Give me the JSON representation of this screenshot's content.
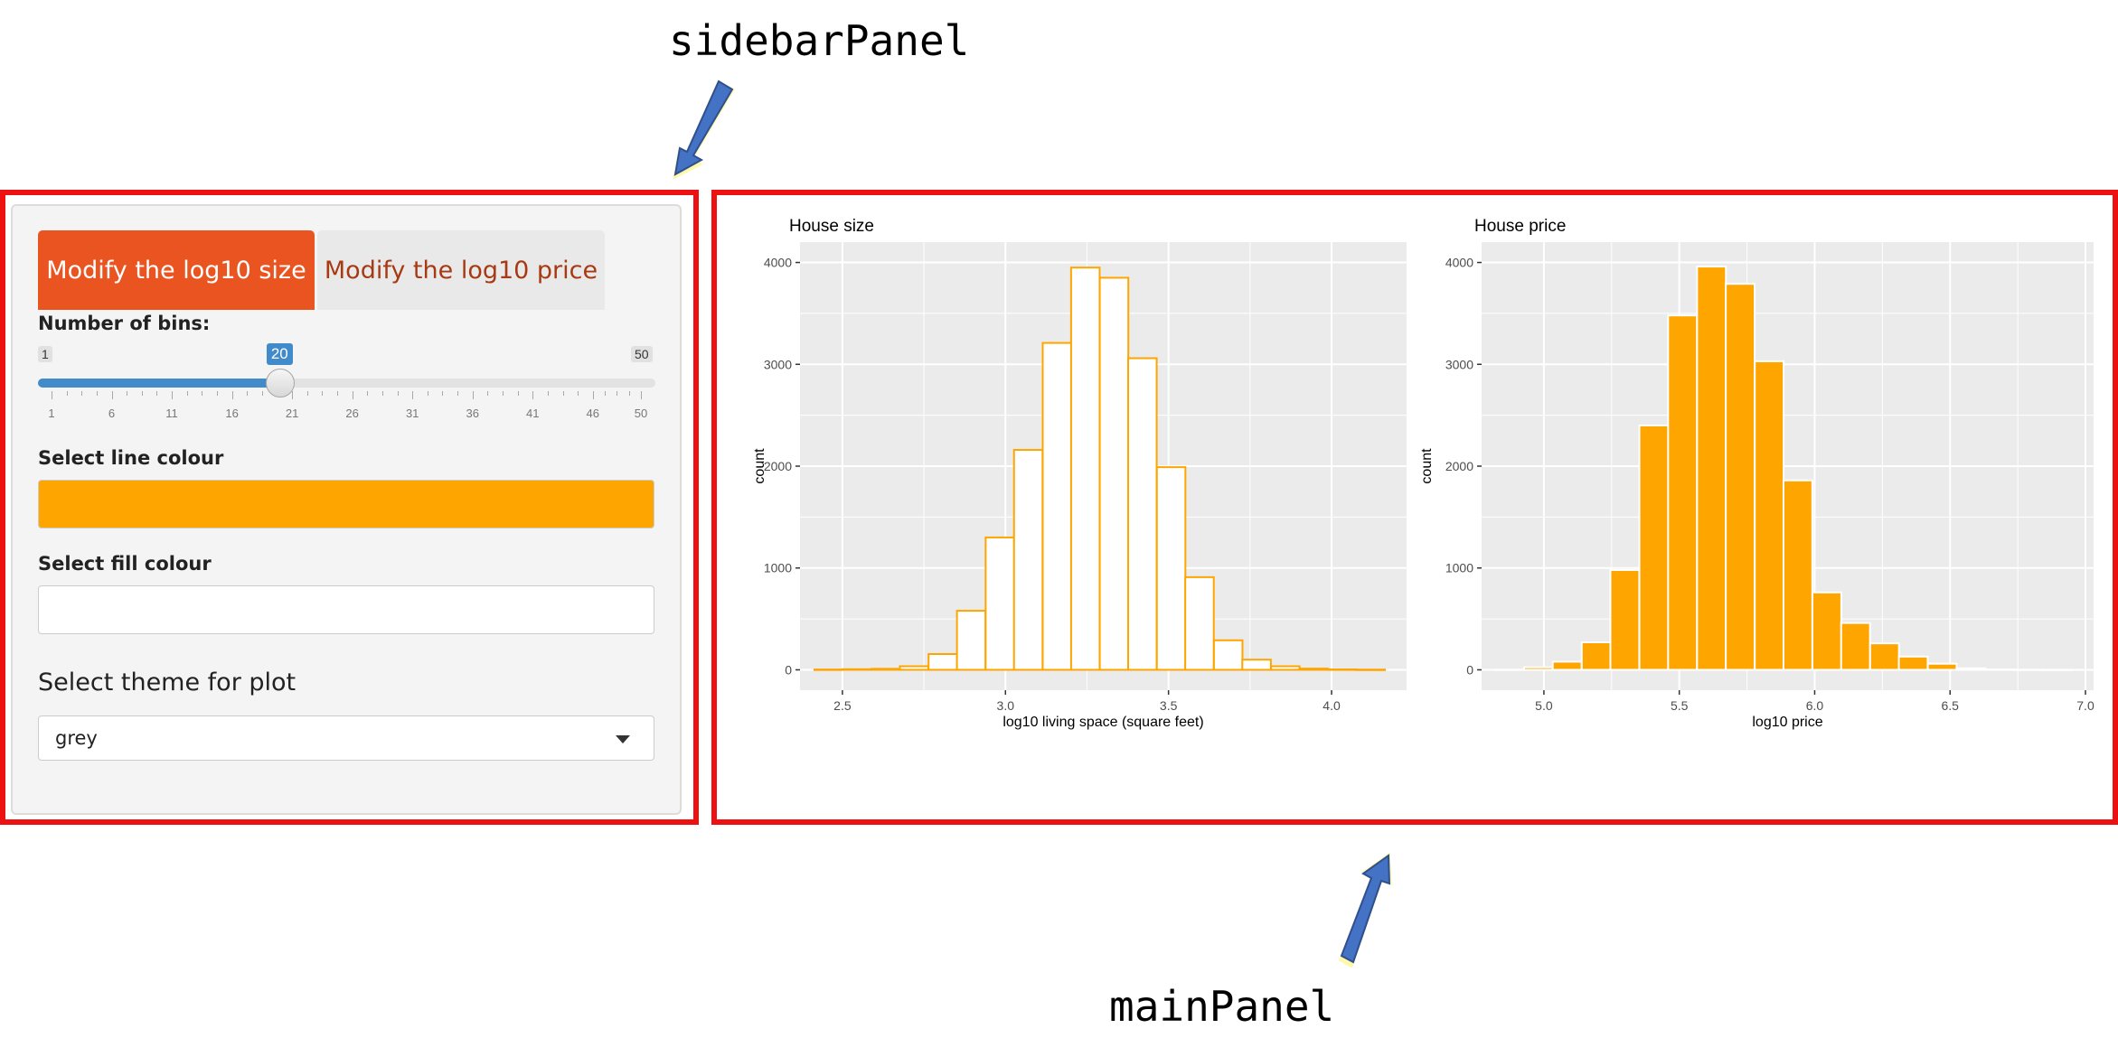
{
  "annotations": {
    "sidebar_label": "sidebarPanel",
    "main_label": "mainPanel"
  },
  "sidebar": {
    "tabs": [
      {
        "label": "Modify the log10 size",
        "active": true
      },
      {
        "label": "Modify the log10 price",
        "active": false
      }
    ],
    "bins_label": "Number of bins:",
    "slider": {
      "min": 1,
      "max": 50,
      "value": 20,
      "ticks": [
        "1",
        "6",
        "11",
        "16",
        "21",
        "26",
        "31",
        "36",
        "41",
        "46",
        "50"
      ]
    },
    "line_colour_label": "Select line colour",
    "line_colour_value": "#FFA500",
    "fill_colour_label": "Select fill colour",
    "fill_colour_value": "#FFFFFF",
    "theme_label": "Select theme for plot",
    "theme_value": "grey"
  },
  "colors": {
    "accent": "#e95420",
    "slider": "#428bca",
    "frame": "#ee1111",
    "plot_bg": "#ebebeb",
    "orange": "#FFA500"
  },
  "chart_data": [
    {
      "type": "bar",
      "title": "House size",
      "xlabel": "log10 living space (square feet)",
      "ylabel": "count",
      "xlim": [
        2.37,
        4.23
      ],
      "ylim": [
        -200,
        4200
      ],
      "xticks": [
        "2.5",
        "3.0",
        "3.5",
        "4.0"
      ],
      "yticks": [
        "0",
        "1000",
        "2000",
        "3000",
        "4000"
      ],
      "bin_width": 0.0875,
      "bin_centers": [
        2.458,
        2.545,
        2.633,
        2.72,
        2.808,
        2.895,
        2.983,
        3.07,
        3.158,
        3.245,
        3.333,
        3.42,
        3.508,
        3.595,
        3.683,
        3.77,
        3.858,
        3.945,
        4.033,
        4.12
      ],
      "values": [
        3,
        6,
        10,
        35,
        155,
        580,
        1300,
        2160,
        3210,
        3950,
        3850,
        3060,
        1990,
        910,
        290,
        100,
        35,
        12,
        4,
        2
      ],
      "fill": "#FFFFFF",
      "line": "#FFA500"
    },
    {
      "type": "bar",
      "title": "House price",
      "xlabel": "log10 price",
      "ylabel": "count",
      "xlim": [
        4.77,
        7.03
      ],
      "ylim": [
        -200,
        4200
      ],
      "xticks": [
        "5.0",
        "5.5",
        "6.0",
        "6.5",
        "7.0"
      ],
      "yticks": [
        "0",
        "1000",
        "2000",
        "3000",
        "4000"
      ],
      "bin_width": 0.1065,
      "bin_centers": [
        4.873,
        4.98,
        5.086,
        5.193,
        5.299,
        5.406,
        5.512,
        5.619,
        5.725,
        5.832,
        5.938,
        6.045,
        6.151,
        6.258,
        6.364,
        6.471,
        6.577,
        6.684,
        6.79,
        6.897
      ],
      "values": [
        2,
        25,
        80,
        270,
        980,
        2400,
        3480,
        3960,
        3790,
        3030,
        1860,
        760,
        460,
        260,
        130,
        60,
        15,
        4,
        2,
        1
      ],
      "fill": "#FFA500",
      "line": "#FFFFFF"
    }
  ]
}
